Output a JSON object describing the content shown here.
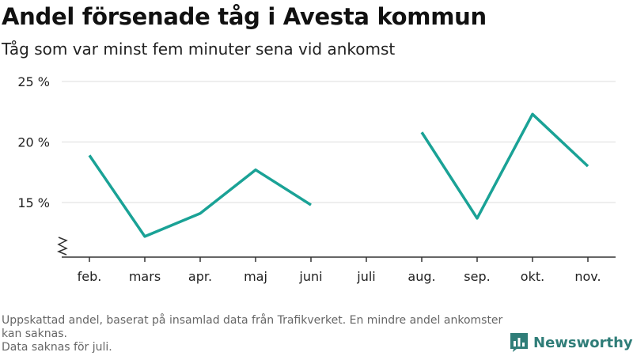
{
  "header": {
    "title": "Andel försenade tåg i Avesta kommun",
    "subtitle": "Tåg som var minst fem minuter sena vid ankomst"
  },
  "footer": {
    "note_line1": "Uppskattad andel, baserat på insamlad data från Trafikverket. En mindre andel ankomster kan saknas.",
    "note_line2": "Data saknas för juli.",
    "brand": "Newsworthy",
    "brand_color": "#2f7d78"
  },
  "chart_data": {
    "type": "line",
    "categories": [
      "feb.",
      "mars",
      "apr.",
      "maj",
      "juni",
      "juli",
      "aug.",
      "sep.",
      "okt.",
      "nov."
    ],
    "series": [
      {
        "values": [
          18.9,
          12.2,
          14.1,
          17.7,
          14.8,
          null,
          20.8,
          13.7,
          22.3,
          18.0
        ],
        "color": "#1aa296"
      }
    ],
    "yticks": [
      15,
      20,
      25
    ],
    "ytick_labels": [
      "15 %",
      "20 %",
      "25 %"
    ],
    "ylim": [
      11,
      25
    ],
    "y_axis_break": true,
    "grid": true,
    "xlabel": "",
    "ylabel": ""
  }
}
